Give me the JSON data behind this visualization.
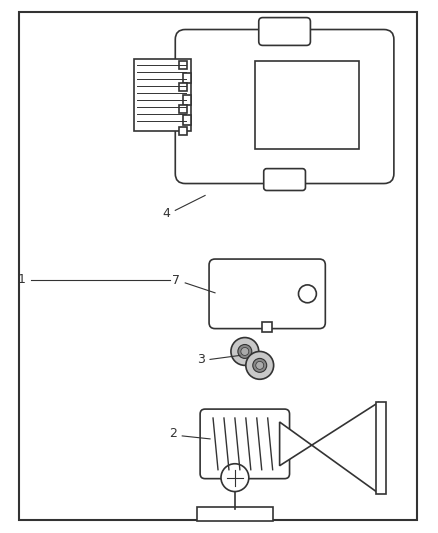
{
  "bg_color": "#ffffff",
  "border_color": "#333333",
  "line_color": "#333333",
  "fig_width": 4.38,
  "fig_height": 5.33,
  "dpi": 100
}
